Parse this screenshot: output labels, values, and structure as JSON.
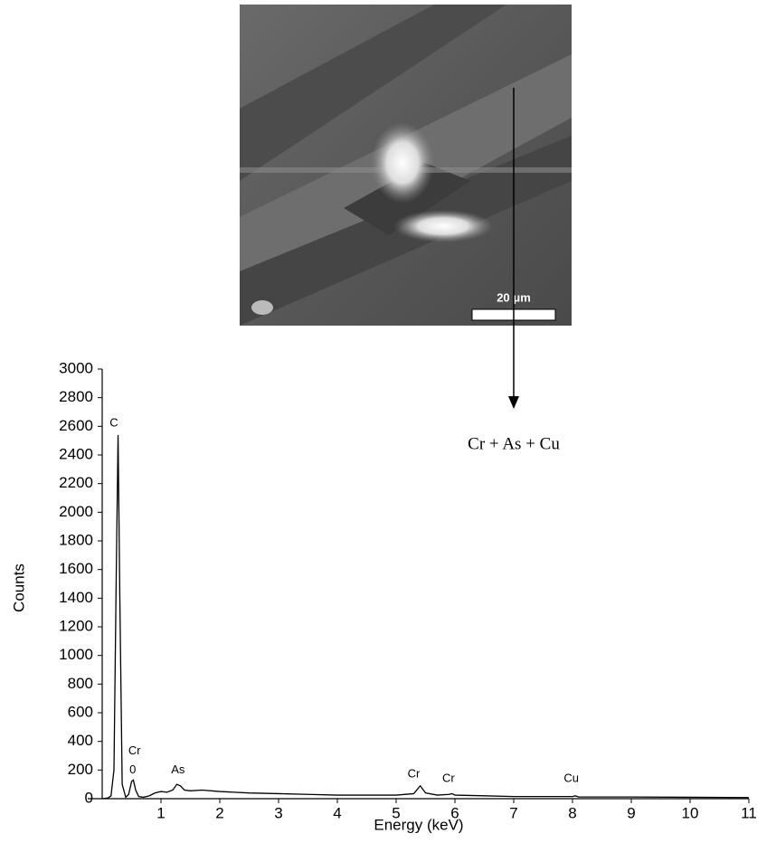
{
  "figure": {
    "scale_bar_label": "20 μm",
    "callout": "Cr + As + Cu"
  },
  "chart_data": {
    "type": "line",
    "x_label": "Energy (keV)",
    "y_label": "Counts",
    "xlim": [
      0,
      11
    ],
    "xticks": [
      1,
      2,
      3,
      4,
      5,
      6,
      7,
      8,
      9,
      10,
      11
    ],
    "ylim": [
      0,
      3000
    ],
    "yticks": [
      0,
      200,
      400,
      600,
      800,
      1000,
      1200,
      1400,
      1600,
      1800,
      2000,
      2200,
      2400,
      2600,
      2800,
      3000
    ],
    "grid": false,
    "series": [
      {
        "color": "#000000",
        "x": [
          0,
          0.1,
          0.15,
          0.2,
          0.24,
          0.27,
          0.3,
          0.34,
          0.4,
          0.45,
          0.5,
          0.53,
          0.57,
          0.62,
          0.7,
          0.8,
          0.9,
          1.0,
          1.1,
          1.2,
          1.27,
          1.33,
          1.4,
          1.5,
          1.7,
          2.0,
          2.5,
          3.0,
          3.5,
          4.0,
          4.5,
          5.0,
          5.3,
          5.41,
          5.5,
          5.7,
          5.9,
          5.95,
          6.0,
          6.5,
          7.0,
          7.5,
          8.0,
          8.05,
          8.1,
          9,
          10,
          11
        ],
        "values": [
          0,
          5,
          20,
          200,
          1600,
          2540,
          1400,
          100,
          10,
          30,
          120,
          130,
          60,
          15,
          10,
          20,
          40,
          50,
          45,
          60,
          100,
          90,
          60,
          55,
          60,
          50,
          40,
          35,
          30,
          25,
          25,
          25,
          35,
          90,
          40,
          25,
          30,
          35,
          25,
          20,
          15,
          15,
          15,
          20,
          12,
          12,
          10,
          8
        ]
      }
    ],
    "annotations": [
      {
        "text": "C",
        "x": 0.2,
        "y": 2620
      },
      {
        "text": "Cr",
        "x": 0.55,
        "y": 330
      },
      {
        "text": "0",
        "x": 0.52,
        "y": 200
      },
      {
        "text": "As",
        "x": 1.29,
        "y": 200
      },
      {
        "text": "Cr",
        "x": 5.3,
        "y": 170
      },
      {
        "text": "Cr",
        "x": 5.89,
        "y": 140
      },
      {
        "text": "Cu",
        "x": 7.98,
        "y": 140
      }
    ]
  }
}
